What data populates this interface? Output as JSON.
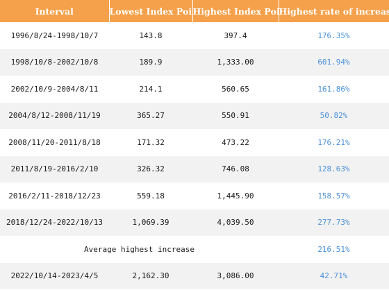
{
  "table": {
    "headers": [
      "Interval",
      "Lowest Index Point",
      "Highest Index Point",
      "Highest rate of increase"
    ],
    "header_color": "#f5a04a",
    "rate_color": "#4a90d9",
    "rows": [
      {
        "interval": "1996/8/24-1998/10/7",
        "low": "143.8",
        "high": "397.4",
        "rate": "176.35%"
      },
      {
        "interval": "1998/10/8-2002/10/8",
        "low": "189.9",
        "high": "1,333.00",
        "rate": "601.94%"
      },
      {
        "interval": "2002/10/9-2004/8/11",
        "low": "214.1",
        "high": "560.65",
        "rate": "161.86%"
      },
      {
        "interval": "2004/8/12-2008/11/19",
        "low": "365.27",
        "high": "550.91",
        "rate": "50.82%"
      },
      {
        "interval": "2008/11/20-2011/8/18",
        "low": "171.32",
        "high": "473.22",
        "rate": "176.21%"
      },
      {
        "interval": "2011/8/19-2016/2/10",
        "low": "326.32",
        "high": "746.08",
        "rate": "128.63%"
      },
      {
        "interval": "2016/2/11-2018/12/23",
        "low": "559.18",
        "high": "1,445.90",
        "rate": "158.57%"
      },
      {
        "interval": "2018/12/24-2022/10/13",
        "low": "1,069.39",
        "high": "4,039.50",
        "rate": "277.73%"
      }
    ],
    "average": {
      "label": "Average highest increase",
      "rate": "216.51%"
    },
    "latest": {
      "interval": "2022/10/14-2023/4/5",
      "low": "2,162.30",
      "high": "3,086.00",
      "rate": "42.71%"
    }
  }
}
